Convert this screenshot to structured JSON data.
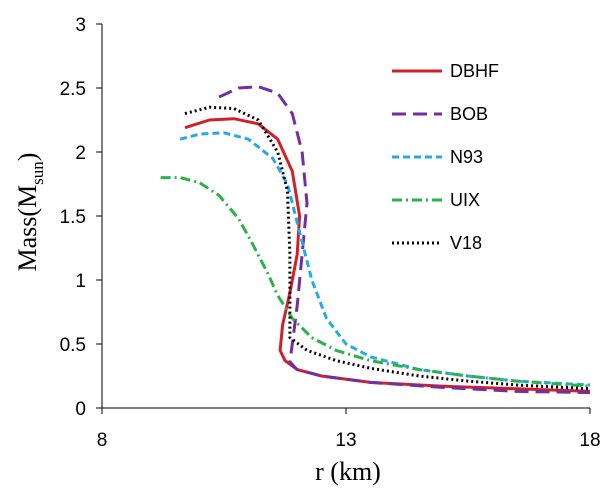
{
  "chart_data": {
    "type": "line",
    "title": "",
    "xlabel": "r (km)",
    "ylabel": {
      "main": "Mass(M",
      "sub": "sun",
      "close": ")"
    },
    "xlim": [
      8,
      18
    ],
    "ylim": [
      0,
      3
    ],
    "xticks": [
      8,
      13,
      18
    ],
    "xtick_labels": [
      "8",
      "13",
      "18"
    ],
    "yticks": [
      0,
      0.5,
      1,
      1.5,
      2,
      2.5,
      3
    ],
    "ytick_labels": [
      "0",
      "0.5",
      "1",
      "1.5",
      "2",
      "2.5",
      "3"
    ],
    "grid": false,
    "legend_position": "top-right",
    "series": [
      {
        "name": "DBHF",
        "color": "#d0202a",
        "dash": "solid",
        "points": [
          [
            9.7,
            2.19
          ],
          [
            10.2,
            2.25
          ],
          [
            10.7,
            2.26
          ],
          [
            11.2,
            2.22
          ],
          [
            11.6,
            2.1
          ],
          [
            11.9,
            1.85
          ],
          [
            12.05,
            1.5
          ],
          [
            12.0,
            1.2
          ],
          [
            11.85,
            0.9
          ],
          [
            11.7,
            0.65
          ],
          [
            11.65,
            0.45
          ],
          [
            11.75,
            0.37
          ],
          [
            12.0,
            0.3
          ],
          [
            12.5,
            0.25
          ],
          [
            13.5,
            0.2
          ],
          [
            15.0,
            0.17
          ],
          [
            16.5,
            0.15
          ],
          [
            18.0,
            0.13
          ]
        ]
      },
      {
        "name": "BOB",
        "color": "#7030a0",
        "dash": "long-dash",
        "points": [
          [
            10.4,
            2.43
          ],
          [
            10.8,
            2.5
          ],
          [
            11.2,
            2.51
          ],
          [
            11.6,
            2.46
          ],
          [
            11.9,
            2.3
          ],
          [
            12.1,
            2.0
          ],
          [
            12.2,
            1.6
          ],
          [
            12.1,
            1.2
          ],
          [
            12.0,
            0.8
          ],
          [
            11.9,
            0.5
          ],
          [
            11.85,
            0.36
          ],
          [
            12.0,
            0.3
          ],
          [
            12.5,
            0.25
          ],
          [
            13.5,
            0.2
          ],
          [
            15.0,
            0.16
          ],
          [
            16.5,
            0.13
          ],
          [
            18.0,
            0.12
          ]
        ]
      },
      {
        "name": "N93",
        "color": "#27a9e1",
        "dash": "short-dash",
        "points": [
          [
            9.6,
            2.1
          ],
          [
            10.0,
            2.14
          ],
          [
            10.5,
            2.15
          ],
          [
            11.0,
            2.1
          ],
          [
            11.5,
            1.95
          ],
          [
            11.8,
            1.75
          ],
          [
            12.0,
            1.45
          ],
          [
            12.3,
            1.0
          ],
          [
            12.6,
            0.7
          ],
          [
            13.0,
            0.5
          ],
          [
            13.5,
            0.4
          ],
          [
            14.5,
            0.3
          ],
          [
            15.5,
            0.25
          ],
          [
            16.5,
            0.21
          ],
          [
            18.0,
            0.18
          ]
        ]
      },
      {
        "name": "UIX",
        "color": "#2bb24c",
        "dash": "dash-dot",
        "points": [
          [
            9.2,
            1.8
          ],
          [
            9.6,
            1.8
          ],
          [
            10.0,
            1.76
          ],
          [
            10.4,
            1.66
          ],
          [
            10.8,
            1.48
          ],
          [
            11.1,
            1.27
          ],
          [
            11.4,
            1.05
          ],
          [
            11.6,
            0.88
          ],
          [
            11.9,
            0.7
          ],
          [
            12.3,
            0.55
          ],
          [
            12.8,
            0.45
          ],
          [
            13.5,
            0.37
          ],
          [
            14.5,
            0.3
          ],
          [
            15.5,
            0.25
          ],
          [
            16.5,
            0.21
          ],
          [
            18.0,
            0.17
          ]
        ]
      },
      {
        "name": "V18",
        "color": "#000000",
        "dash": "dotted",
        "points": [
          [
            9.7,
            2.3
          ],
          [
            10.2,
            2.35
          ],
          [
            10.7,
            2.34
          ],
          [
            11.2,
            2.25
          ],
          [
            11.6,
            2.0
          ],
          [
            11.8,
            1.7
          ],
          [
            11.85,
            1.2
          ],
          [
            11.85,
            0.75
          ],
          [
            11.85,
            0.55
          ],
          [
            12.2,
            0.45
          ],
          [
            12.8,
            0.37
          ],
          [
            13.5,
            0.31
          ],
          [
            14.5,
            0.25
          ],
          [
            15.5,
            0.21
          ],
          [
            16.5,
            0.18
          ],
          [
            18.0,
            0.15
          ]
        ]
      }
    ]
  }
}
